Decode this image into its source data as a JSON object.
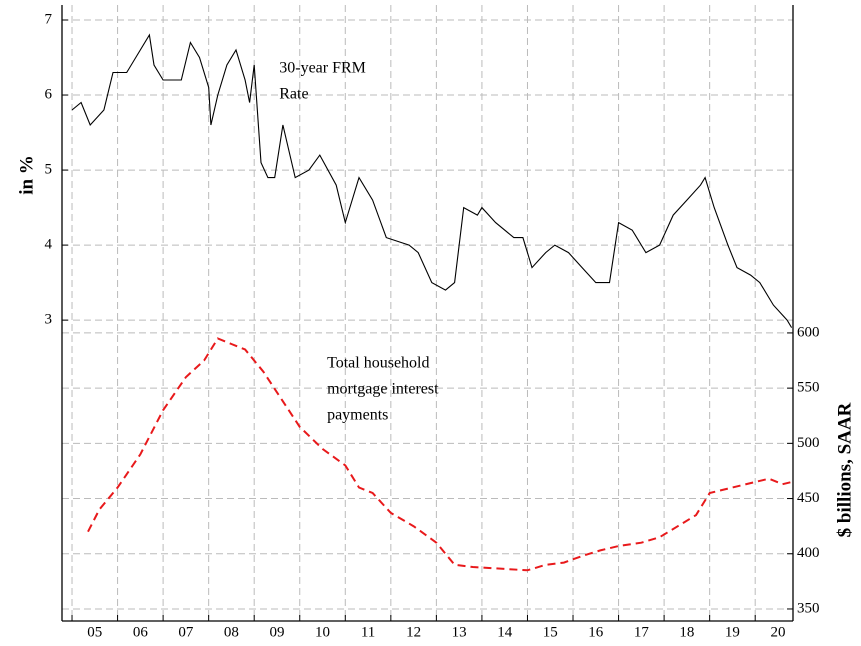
{
  "chart_data": {
    "type": "line",
    "ylabel": "in %",
    "y2label": "$ billions, SAAR",
    "xlim": [
      2004.78,
      2020.83
    ],
    "xticks": [
      {
        "value": 2005.5,
        "label": "05"
      },
      {
        "value": 2006.5,
        "label": "06"
      },
      {
        "value": 2007.5,
        "label": "07"
      },
      {
        "value": 2008.5,
        "label": "08"
      },
      {
        "value": 2009.5,
        "label": "09"
      },
      {
        "value": 2010.5,
        "label": "10"
      },
      {
        "value": 2011.5,
        "label": "11"
      },
      {
        "value": 2012.5,
        "label": "12"
      },
      {
        "value": 2013.5,
        "label": "13"
      },
      {
        "value": 2014.5,
        "label": "14"
      },
      {
        "value": 2015.5,
        "label": "15"
      },
      {
        "value": 2016.5,
        "label": "16"
      },
      {
        "value": 2017.5,
        "label": "17"
      },
      {
        "value": 2018.5,
        "label": "18"
      },
      {
        "value": 2019.5,
        "label": "19"
      },
      {
        "value": 2020.5,
        "label": "20"
      }
    ],
    "xgrid": [
      2005,
      2006,
      2007,
      2008,
      2009,
      2010,
      2011,
      2012,
      2013,
      2014,
      2015,
      2016,
      2017,
      2018,
      2019,
      2020
    ],
    "ylim": [
      -1.01,
      7.2
    ],
    "yticks": [
      3,
      4,
      5,
      6,
      7
    ],
    "y2lim": [
      339.1,
      897
    ],
    "y2ticks": [
      350,
      400,
      450,
      500,
      550,
      600
    ],
    "grid": true,
    "annotations": [
      {
        "lines": [
          "30-year FRM",
          "Rate"
        ],
        "x": 2009.55,
        "y": 6.35
      },
      {
        "lines": [
          "Total household",
          "mortgage interest",
          "payments"
        ],
        "x": 2010.6,
        "y2": 572
      }
    ],
    "series": [
      {
        "name": "30-year FRM Rate",
        "color": "#000000",
        "dash": false,
        "x": [
          2005.0,
          2005.2,
          2005.4,
          2005.7,
          2005.9,
          2006.2,
          2006.5,
          2006.7,
          2006.8,
          2007.0,
          2007.2,
          2007.4,
          2007.6,
          2007.8,
          2008.0,
          2008.05,
          2008.2,
          2008.4,
          2008.6,
          2008.8,
          2008.9,
          2009.0,
          2009.15,
          2009.3,
          2009.45,
          2009.63,
          2009.9,
          2010.2,
          2010.44,
          2010.8,
          2011.0,
          2011.3,
          2011.6,
          2011.9,
          2012.4,
          2012.6,
          2012.9,
          2013.2,
          2013.4,
          2013.6,
          2013.9,
          2014.0,
          2014.3,
          2014.7,
          2014.9,
          2015.1,
          2015.4,
          2015.6,
          2015.9,
          2016.2,
          2016.5,
          2016.8,
          2017.0,
          2017.3,
          2017.6,
          2017.9,
          2018.2,
          2018.5,
          2018.8,
          2018.9,
          2019.1,
          2019.4,
          2019.6,
          2019.9,
          2020.1,
          2020.4,
          2020.7,
          2020.8
        ],
        "values": [
          5.8,
          5.9,
          5.6,
          5.8,
          6.3,
          6.3,
          6.6,
          6.8,
          6.4,
          6.2,
          6.2,
          6.2,
          6.7,
          6.5,
          6.1,
          5.6,
          6.0,
          6.4,
          6.6,
          6.2,
          5.9,
          6.4,
          5.1,
          4.9,
          4.9,
          5.6,
          4.9,
          5.0,
          5.2,
          4.8,
          4.3,
          4.9,
          4.6,
          4.1,
          4.0,
          3.9,
          3.5,
          3.4,
          3.5,
          4.5,
          4.4,
          4.5,
          4.3,
          4.1,
          4.1,
          3.7,
          3.9,
          4.0,
          3.9,
          3.7,
          3.5,
          3.5,
          4.3,
          4.2,
          3.9,
          4.0,
          4.4,
          4.6,
          4.8,
          4.9,
          4.5,
          4.0,
          3.7,
          3.6,
          3.5,
          3.2,
          3.0,
          2.9
        ]
      },
      {
        "name": "Total household mortgage interest payments",
        "color": "#e8191b",
        "dash": true,
        "axis": "y2",
        "x": [
          2005.35,
          2005.6,
          2006.0,
          2006.5,
          2007.0,
          2007.5,
          2007.9,
          2008.2,
          2008.5,
          2008.8,
          2009.2,
          2009.6,
          2010.0,
          2010.5,
          2011.0,
          2011.3,
          2011.6,
          2012.0,
          2012.5,
          2013.0,
          2013.4,
          2013.8,
          2014.2,
          2014.6,
          2015.0,
          2015.4,
          2015.8,
          2016.2,
          2016.6,
          2017.0,
          2017.5,
          2017.9,
          2018.3,
          2018.7,
          2019.0,
          2019.5,
          2020.0,
          2020.3,
          2020.6,
          2020.8
        ],
        "values": [
          420,
          440,
          460,
          490,
          530,
          560,
          575,
          595,
          590,
          585,
          565,
          540,
          515,
          495,
          480,
          460,
          455,
          437,
          425,
          410,
          390,
          388,
          387,
          386,
          385,
          390,
          392,
          398,
          403,
          407,
          410,
          415,
          425,
          435,
          455,
          460,
          465,
          468,
          463,
          465
        ]
      }
    ]
  }
}
